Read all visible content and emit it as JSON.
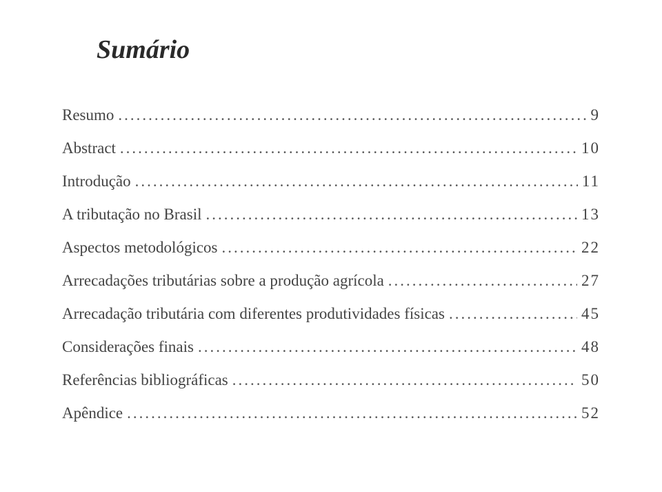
{
  "title": "Sumário",
  "title_fontsize": 38,
  "title_color": "#2a2a2a",
  "entry_fontsize": 23,
  "entry_color": "#444444",
  "background_color": "#ffffff",
  "entries": [
    {
      "label": "Resumo",
      "page": "9"
    },
    {
      "label": "Abstract",
      "page": "10"
    },
    {
      "label": "Introdução",
      "page": "11"
    },
    {
      "label": "A tributação no Brasil",
      "page": "13"
    },
    {
      "label": "Aspectos metodológicos",
      "page": "22"
    },
    {
      "label": "Arrecadações tributárias sobre a produção agrícola",
      "page": "27"
    },
    {
      "label": "Arrecadação tributária com diferentes produtividades físicas",
      "page": "45"
    },
    {
      "label": "Considerações finais",
      "page": "48"
    },
    {
      "label": "Referências bibliográficas",
      "page": "50"
    },
    {
      "label": "Apêndice",
      "page": "52"
    }
  ]
}
